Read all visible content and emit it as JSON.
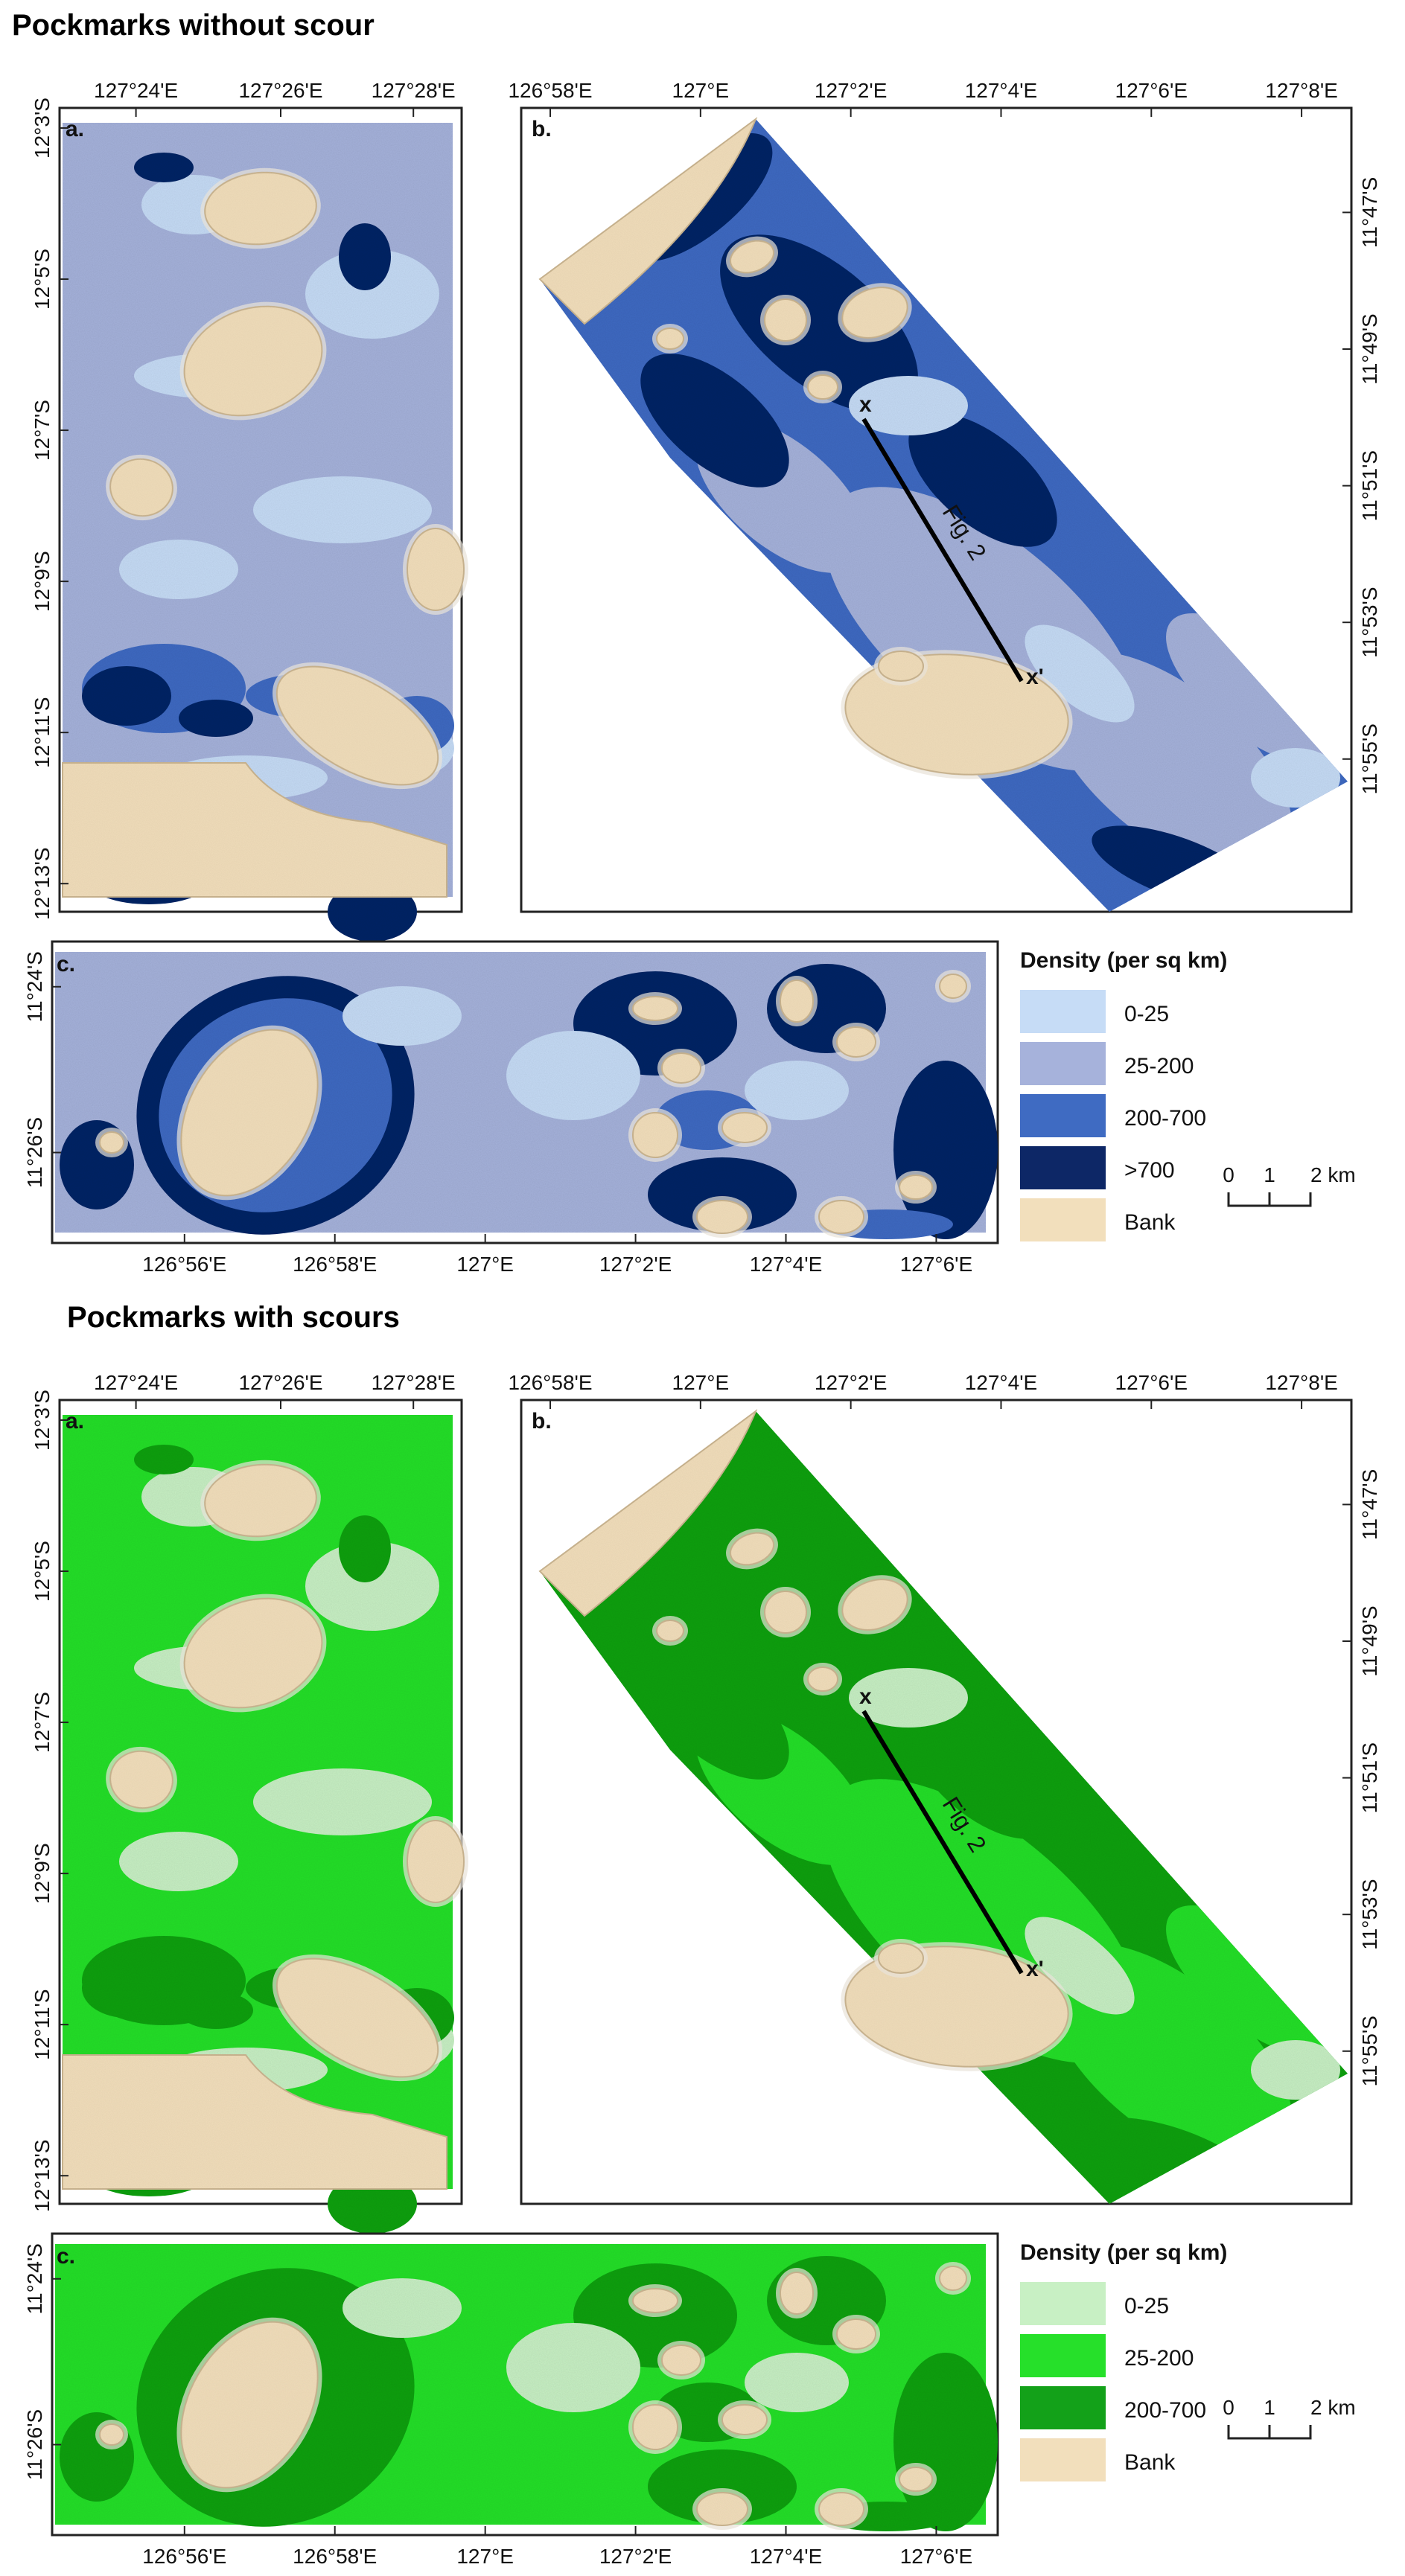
{
  "sections": [
    {
      "title": "Pockmarks without scour",
      "panels": [
        {
          "label": "a.",
          "top_ticks": [
            "127°24'E",
            "127°26'E",
            "127°28'E"
          ],
          "left_ticks": [
            "12°3'S",
            "12°5'S",
            "12°7'S",
            "12°9'S",
            "12°11'S",
            "12°13'S"
          ]
        },
        {
          "label": "b.",
          "top_ticks": [
            "126°58'E",
            "127°E",
            "127°2'E",
            "127°4'E",
            "127°6'E",
            "127°8'E"
          ],
          "right_ticks": [
            "11°47'S",
            "11°49'S",
            "11°51'S",
            "11°53'S",
            "11°55'S"
          ],
          "profile": {
            "start": "x",
            "end": "x'",
            "label": "Fig. 2"
          }
        },
        {
          "label": "c.",
          "left_ticks": [
            "11°24'S",
            "11°26'S"
          ],
          "bottom_ticks": [
            "126°56'E",
            "126°58'E",
            "127°E",
            "127°2'E",
            "127°4'E",
            "127°6'E"
          ]
        }
      ],
      "legend": {
        "title": "Density (per sq km)",
        "items": [
          {
            "label": "0-25",
            "color": "#c6dcf6"
          },
          {
            "label": "25-200",
            "color": "#a6b2db"
          },
          {
            "label": "200-700",
            "color": "#3f6bc2"
          },
          {
            "label": ">700",
            "color": "#0d2766"
          },
          {
            "label": "Bank",
            "color": "#f2dfbc"
          }
        ]
      },
      "scale": {
        "labels": [
          "0",
          "1",
          "2 km"
        ]
      }
    },
    {
      "title": "Pockmarks with scours",
      "panels": [
        {
          "label": "a.",
          "top_ticks": [
            "127°24'E",
            "127°26'E",
            "127°28'E"
          ],
          "left_ticks": [
            "12°3'S",
            "12°5'S",
            "12°7'S",
            "12°9'S",
            "12°11'S",
            "12°13'S"
          ]
        },
        {
          "label": "b.",
          "top_ticks": [
            "126°58'E",
            "127°E",
            "127°2'E",
            "127°4'E",
            "127°6'E",
            "127°8'E"
          ],
          "right_ticks": [
            "11°47'S",
            "11°49'S",
            "11°51'S",
            "11°53'S",
            "11°55'S"
          ],
          "profile": {
            "start": "x",
            "end": "x'",
            "label": "Fig. 2"
          }
        },
        {
          "label": "c.",
          "left_ticks": [
            "11°24'S",
            "11°26'S"
          ],
          "bottom_ticks": [
            "126°56'E",
            "126°58'E",
            "127°E",
            "127°2'E",
            "127°4'E",
            "127°6'E"
          ]
        }
      ],
      "legend": {
        "title": "Density (per sq km)",
        "items": [
          {
            "label": "0-25",
            "color": "#c8f0c4"
          },
          {
            "label": "25-200",
            "color": "#26e02a"
          },
          {
            "label": "200-700",
            "color": "#13a119"
          },
          {
            "label": "Bank",
            "color": "#f2dfbc"
          }
        ]
      },
      "scale": {
        "labels": [
          "0",
          "1",
          "2 km"
        ]
      }
    }
  ]
}
